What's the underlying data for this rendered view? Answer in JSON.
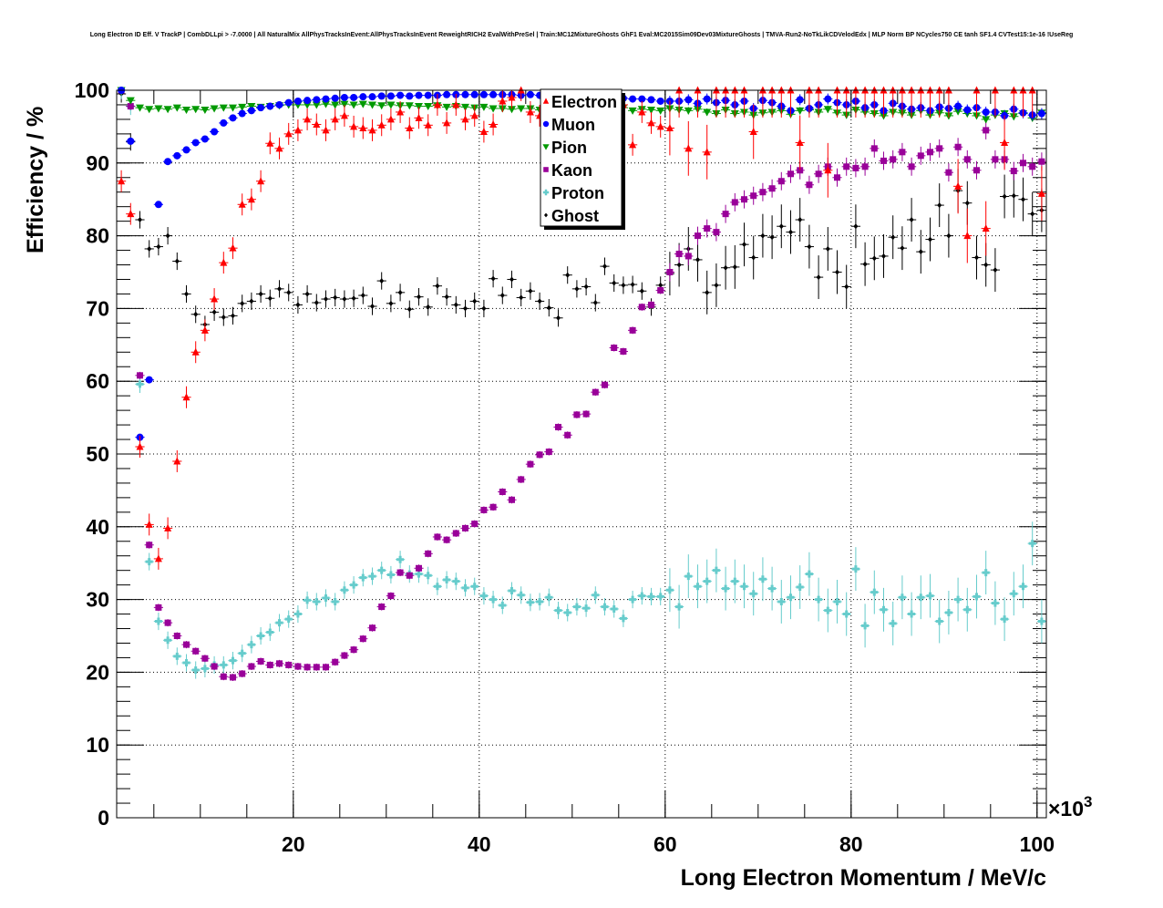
{
  "chart_data": {
    "type": "scatter",
    "title": "Long Electron ID Eff. V TrackP | CombDLLpi > -7.0000 | All NaturalMix AllPhysTracksInEvent:AllPhysTracksInEvent ReweightRICH2 EvalWithPreSel | Train:MC12MixtureGhosts GhF1 Eval:MC2015Sim09Dev03MixtureGhosts | TMVA-Run2-NoTkLikCDVelodEdx | MLP Norm BP NCycles750 CE tanh SF1.4 CVTest15:1e-16 !UseReg",
    "xlabel": "Long Electron Momentum / MeV/c",
    "ylabel": "Efficiency / %",
    "x_multiplier": "×10",
    "x_multiplier_exp": "3",
    "xlim": [
      1,
      101
    ],
    "ylim": [
      0,
      100
    ],
    "x_bin_width": 1,
    "x_first_bin_center": 1.5,
    "xticks": [
      "20",
      "40",
      "60",
      "80",
      "100"
    ],
    "yticks": [
      "0",
      "10",
      "20",
      "30",
      "40",
      "50",
      "60",
      "70",
      "80",
      "90",
      "100"
    ],
    "grid": true,
    "legend_position": "top-center",
    "series": [
      {
        "name": "Electron",
        "color": "#ff0000",
        "marker": "triangle-up",
        "yerr_typical": 1.5,
        "values": [
          87.5,
          83,
          51,
          40.3,
          35.6,
          39.8,
          49,
          57.8,
          64,
          67,
          71.3,
          76.3,
          78.3,
          84.3,
          85,
          87.5,
          92.7,
          92,
          94,
          94.5,
          96,
          95.3,
          94.5,
          96,
          96.5,
          95,
          94.8,
          94.5,
          95.2,
          96,
          97,
          94.8,
          96.2,
          95.2,
          98,
          95.5,
          98,
          96,
          96.5,
          94.3,
          95.3,
          98.5,
          99,
          100,
          97,
          96.5,
          96,
          98,
          98,
          99,
          99,
          98,
          99,
          99,
          98,
          92.5,
          97,
          95.5,
          95,
          94.8,
          100,
          92,
          100,
          91.5,
          100,
          100,
          100,
          100,
          94.3,
          100,
          100,
          100,
          100,
          92.8,
          100,
          100,
          89,
          100,
          100,
          100,
          100,
          100,
          100,
          100,
          100,
          100,
          100,
          100,
          100,
          100,
          86.8,
          80,
          100,
          81,
          100,
          92.8,
          100,
          100,
          100,
          85.8
        ]
      },
      {
        "name": "Muon",
        "color": "#0000ff",
        "marker": "circle",
        "yerr_typical": 0.3,
        "values": [
          100,
          93,
          52.3,
          60.2,
          84.3,
          90.2,
          91,
          91.8,
          92.8,
          93.3,
          94.3,
          95.5,
          96.2,
          96.8,
          97.2,
          97.6,
          97.8,
          98,
          98.3,
          98.5,
          98.6,
          98.7,
          98.8,
          98.9,
          99,
          99,
          99.1,
          99.1,
          99.2,
          99.2,
          99.3,
          99.2,
          99.3,
          99.3,
          99.3,
          99.4,
          99.4,
          99.4,
          99.4,
          99.4,
          99.4,
          99.4,
          99.4,
          99.3,
          99.4,
          99.3,
          99.3,
          99.2,
          99.2,
          99.1,
          99.1,
          99,
          99,
          99,
          98.9,
          98.8,
          98.8,
          98.7,
          98.5,
          98.5,
          98.5,
          98.7,
          98.2,
          98.8,
          98.3,
          98.6,
          98,
          98.5,
          97.5,
          98.6,
          98.3,
          97.8,
          97.2,
          98.7,
          97.5,
          98,
          98.8,
          98.3,
          98,
          98.5,
          97.6,
          98,
          97.2,
          98.2,
          97.8,
          97.4,
          97.6,
          97.2,
          97.7,
          97.5,
          97.8,
          97.3,
          97.6,
          97,
          97,
          96.5,
          97.4,
          96.9,
          96.6,
          96.8
        ]
      },
      {
        "name": "Pion",
        "color": "#009900",
        "marker": "triangle-down",
        "yerr_typical": 0.2,
        "values": [
          100,
          98.6,
          97.6,
          97.4,
          97.5,
          97.4,
          97.6,
          97.3,
          97.4,
          97.3,
          97.5,
          97.6,
          97.6,
          97.7,
          97.8,
          97.7,
          97.8,
          97.9,
          98,
          98,
          98,
          98,
          98.1,
          98,
          98.1,
          98,
          98.1,
          98,
          97.9,
          98,
          97.9,
          97.9,
          97.8,
          97.8,
          97.9,
          97.7,
          97.8,
          97.7,
          97.6,
          97.7,
          97.5,
          97.5,
          97.4,
          97.5,
          97.5,
          97.3,
          97.5,
          97.4,
          97.6,
          97.4,
          97.3,
          97.4,
          97.5,
          97.3,
          97.6,
          97.2,
          97.4,
          97.3,
          97.2,
          97.5,
          97.3,
          97.2,
          97.4,
          97,
          96.8,
          97.3,
          96.8,
          97,
          96.6,
          96.9,
          97,
          97.2,
          96.7,
          97.2,
          97.3,
          97,
          97.4,
          96.9,
          96.6,
          97.3,
          97,
          96.8,
          96.5,
          97,
          96.9,
          96.6,
          97.2,
          96.6,
          96.9,
          96.5,
          97.1,
          96.8,
          96.5,
          96,
          96.6,
          96.8,
          96.4,
          96.8,
          96.2,
          96.9
        ]
      },
      {
        "name": "Kaon",
        "color": "#990099",
        "marker": "square",
        "yerr_typical": 0.5,
        "values": [
          100,
          97.8,
          60.8,
          37.5,
          28.9,
          26.8,
          25,
          23.8,
          22.9,
          21.9,
          20.8,
          19.4,
          19.3,
          19.8,
          20.8,
          21.5,
          21,
          21.2,
          21,
          20.8,
          20.7,
          20.7,
          20.7,
          21.4,
          22.3,
          23.1,
          24.6,
          26.1,
          29,
          30.5,
          33.7,
          33.3,
          34.3,
          36.3,
          38.6,
          38.2,
          39.1,
          39.8,
          40.4,
          42.3,
          42.7,
          44.8,
          43.7,
          46.5,
          48.6,
          49.9,
          50.3,
          53.7,
          52.6,
          55.4,
          55.5,
          58.5,
          59.5,
          64.6,
          64.1,
          67,
          70.2,
          70.5,
          72.5,
          75,
          77.5,
          77.2,
          80,
          81,
          80.5,
          83,
          84.6,
          85,
          85.5,
          86,
          86.5,
          87.5,
          88.5,
          89,
          87,
          88.5,
          89.5,
          88,
          89.5,
          89.3,
          89.5,
          92,
          90.3,
          90.5,
          91.5,
          89.5,
          91,
          91.5,
          92,
          88.7,
          92.2,
          90.5,
          89,
          94.5,
          90.5,
          90.5,
          88.9,
          90,
          89.5,
          90.2
        ]
      },
      {
        "name": "Proton",
        "color": "#66cccc",
        "marker": "cross",
        "yerr_typical": 1.2,
        "values": [
          100,
          97.8,
          59.6,
          35.2,
          27,
          24.4,
          22.2,
          21.3,
          20.3,
          20.5,
          21,
          21,
          21.6,
          22.6,
          23.8,
          25,
          25.5,
          26.8,
          27.3,
          28,
          29.9,
          29.7,
          30.2,
          29.7,
          31.3,
          32,
          33,
          33.2,
          34,
          33.4,
          35.5,
          33.5,
          33.5,
          33.3,
          31.8,
          32.7,
          32.5,
          31.6,
          31.8,
          30.5,
          30,
          29.2,
          31.2,
          30.6,
          29.6,
          29.7,
          30.3,
          28.5,
          28.2,
          29,
          28.8,
          30.6,
          29,
          28.7,
          27.4,
          30,
          30.5,
          30.4,
          30.4,
          31.3,
          29,
          33.2,
          31.8,
          32.5,
          34,
          31.5,
          32.5,
          31.8,
          30.8,
          32.8,
          31.5,
          29.7,
          30.3,
          31.7,
          33.5,
          30,
          28.5,
          29.7,
          28,
          34.2,
          26.4,
          31,
          28.6,
          26.7,
          30.3,
          28,
          30.3,
          30.5,
          27,
          28.2,
          30,
          28.6,
          30.4,
          33.7,
          29.5,
          27.3,
          30.8,
          31.8,
          37.7,
          27
        ]
      },
      {
        "name": "Ghost",
        "color": "#000000",
        "marker": "diamond",
        "yerr_typical": 1.2,
        "values": [
          99.5,
          92.9,
          82.2,
          78.2,
          78.5,
          80,
          76.5,
          72,
          69.2,
          67.8,
          69.5,
          68.8,
          69,
          70.7,
          71,
          72,
          71.4,
          72.7,
          72.2,
          70.5,
          72,
          70.8,
          71.3,
          71.5,
          71.3,
          71.4,
          71.8,
          70.3,
          73.8,
          70.7,
          72.2,
          69.9,
          71.6,
          70.2,
          73.1,
          71.6,
          70.5,
          70,
          71,
          70,
          74.1,
          71.8,
          74,
          71.5,
          72.4,
          71,
          70.1,
          68.7,
          74.6,
          72.7,
          73,
          70.8,
          75.8,
          73.5,
          73.2,
          73.3,
          72.4,
          70.2,
          73.2,
          74.8,
          76,
          78.2,
          76.7,
          72.2,
          73.2,
          75.6,
          75.7,
          78.8,
          77,
          80,
          79.8,
          81.3,
          80.5,
          82.2,
          78.5,
          74.3,
          78.2,
          75,
          73,
          81.3,
          76.1,
          76.9,
          77.2,
          79.8,
          78.3,
          82.2,
          77.8,
          79.5,
          84.2,
          80,
          86.2,
          84.5,
          77,
          76,
          75.3,
          85.4,
          85.5,
          85,
          83,
          83.5
        ]
      }
    ]
  }
}
